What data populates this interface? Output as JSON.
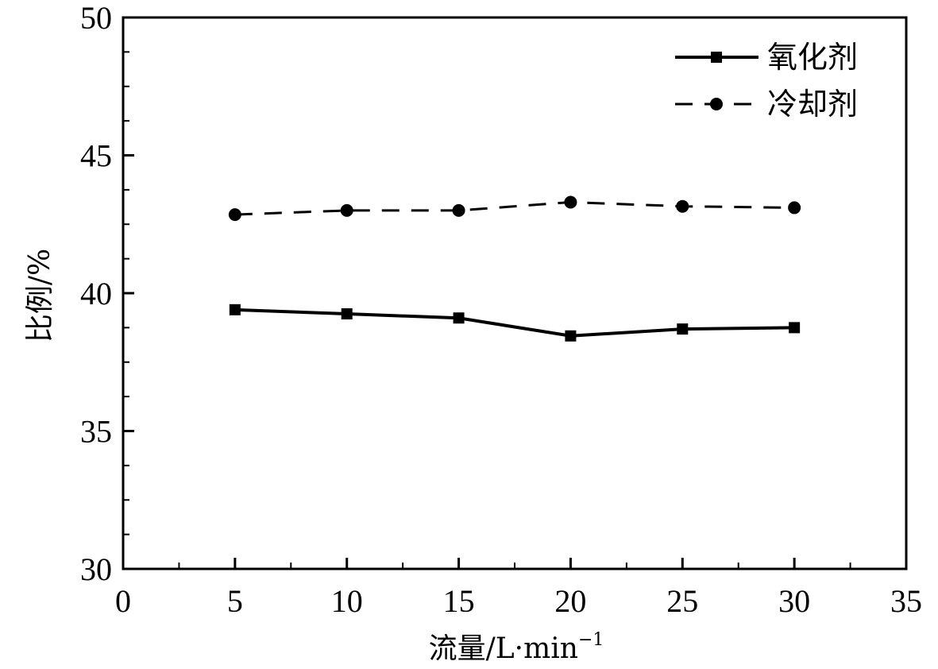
{
  "chart_data": {
    "type": "line",
    "title": "",
    "xlabel": "流量/L·min",
    "xlabel_superscript": "−1",
    "ylabel": "比例/%",
    "xlim": [
      0,
      35
    ],
    "ylim": [
      30,
      50
    ],
    "xticks": [
      "0",
      "5",
      "10",
      "15",
      "20",
      "25",
      "30",
      "35"
    ],
    "yticks": [
      "30",
      "35",
      "40",
      "45",
      "50"
    ],
    "grid": false,
    "legend_position": "top-right",
    "x": [
      5,
      10,
      15,
      20,
      25,
      30
    ],
    "series": [
      {
        "name": "氧化剂",
        "values": [
          39.4,
          39.25,
          39.1,
          38.45,
          38.7,
          38.75
        ],
        "line_style": "solid",
        "marker": "square",
        "color": "#000000"
      },
      {
        "name": "冷却剂",
        "values": [
          42.85,
          43.0,
          43.0,
          43.3,
          43.15,
          43.1
        ],
        "line_style": "dashed",
        "marker": "circle",
        "color": "#000000"
      }
    ]
  }
}
